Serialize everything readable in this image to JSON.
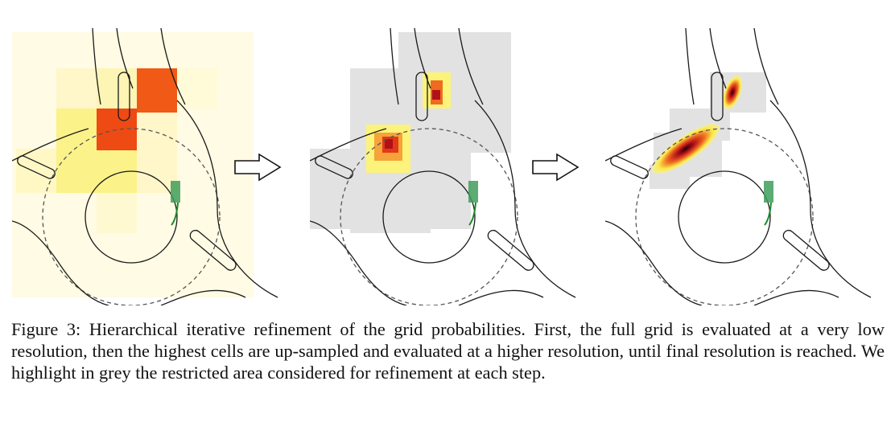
{
  "caption": {
    "text": "Figure 3: Hierarchical iterative refinement of the grid probabilities. First, the full grid is evaluated at a very low resolution, then the highest cells are up-sampled and evaluated at a higher resolution, until final resolution is reached. We highlight in grey the restricted area considered for refinement at each step."
  },
  "colors": {
    "restricted_area": "#e2e2e2",
    "road_line": "#1a1a1a",
    "vehicle": "#3f9e5a",
    "heat_low": "#fffad6",
    "heat_mid": "#fbf37a",
    "heat_high": "#f06a1f",
    "heat_peak": "#b0101a"
  },
  "panels": [
    {
      "step": 1,
      "grid": "very low resolution"
    },
    {
      "step": 2,
      "grid": "higher resolution"
    },
    {
      "step": 3,
      "grid": "final resolution"
    }
  ],
  "arrows": [
    "arrow-right-icon",
    "arrow-right-icon"
  ]
}
